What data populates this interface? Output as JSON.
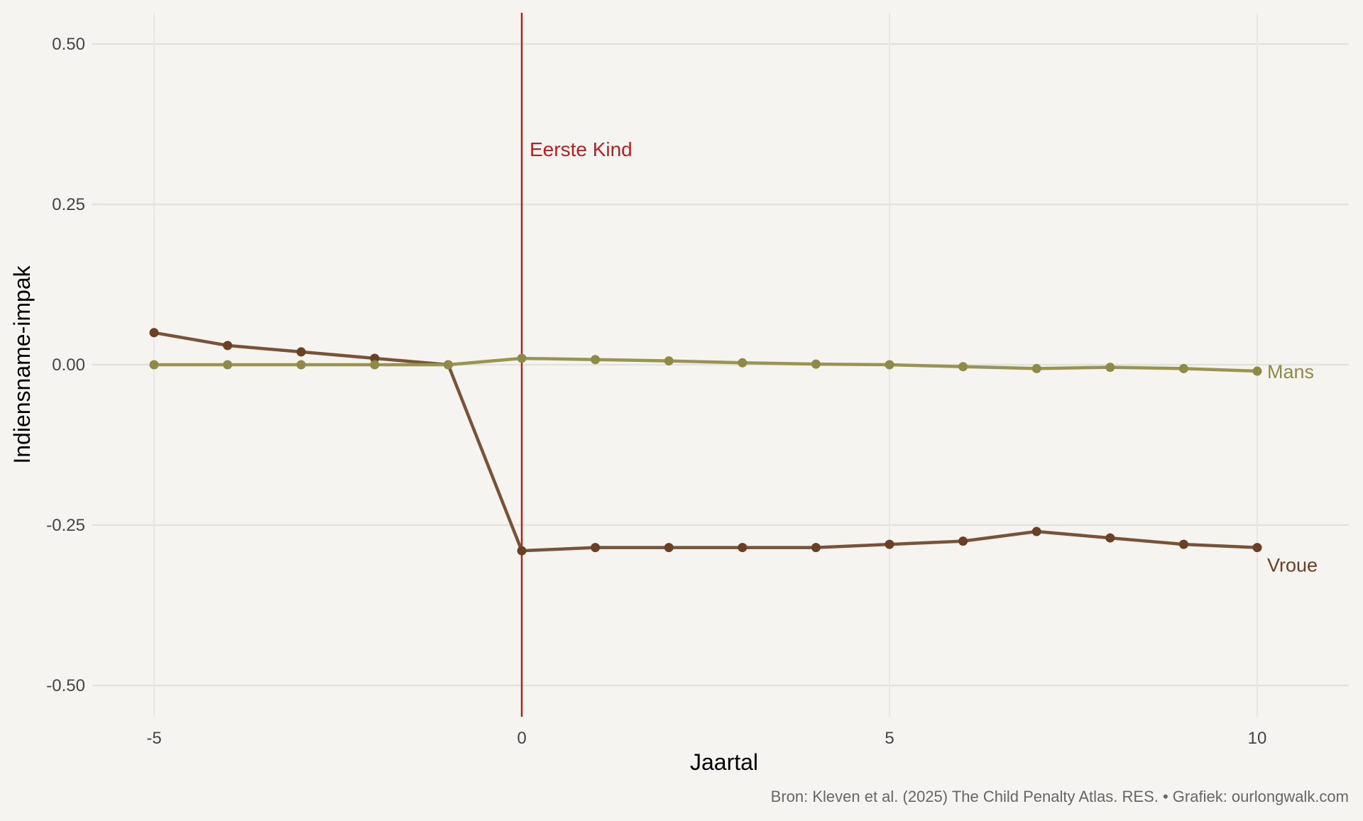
{
  "chart_data": {
    "type": "line",
    "xlabel": "Jaartal",
    "ylabel": "Indiensname-impak",
    "xlim": [
      -5.9,
      11.2
    ],
    "ylim": [
      -0.55,
      0.55
    ],
    "x_ticks": [
      -5,
      0,
      5,
      10
    ],
    "x_tick_labels": [
      "-5",
      "0",
      "5",
      "10"
    ],
    "y_ticks": [
      0.5,
      0.25,
      0,
      -0.25,
      -0.5
    ],
    "y_tick_labels": [
      "0.50",
      "0.25",
      "0.00",
      "-0.25",
      "-0.50"
    ],
    "grid": true,
    "x": [
      -5,
      -4,
      -3,
      -2,
      -1,
      0,
      1,
      2,
      3,
      4,
      5,
      6,
      7,
      8,
      9,
      10
    ],
    "series": [
      {
        "name": "Vroue",
        "color": "#6b3f22",
        "line_color": "#7a5238",
        "values": [
          0.05,
          0.03,
          0.02,
          0.01,
          0.0,
          -0.29,
          -0.285,
          -0.285,
          -0.285,
          -0.285,
          -0.28,
          -0.275,
          -0.26,
          -0.27,
          -0.28,
          -0.285
        ]
      },
      {
        "name": "Mans",
        "color": "#8f8a45",
        "line_color": "#9a9452",
        "values": [
          0.0,
          0.0,
          0.0,
          0.0,
          0.0,
          0.01,
          0.008,
          0.006,
          0.003,
          0.001,
          0.0,
          -0.003,
          -0.006,
          -0.004,
          -0.006,
          -0.01
        ]
      }
    ],
    "annotations": [
      {
        "text": "Eerste Kind",
        "x": 0,
        "color": "#b22222"
      }
    ],
    "caption": "Bron: Kleven et al. (2025) The Child Penalty Atlas. RES. • Grafiek: ourlongwalk.com"
  }
}
